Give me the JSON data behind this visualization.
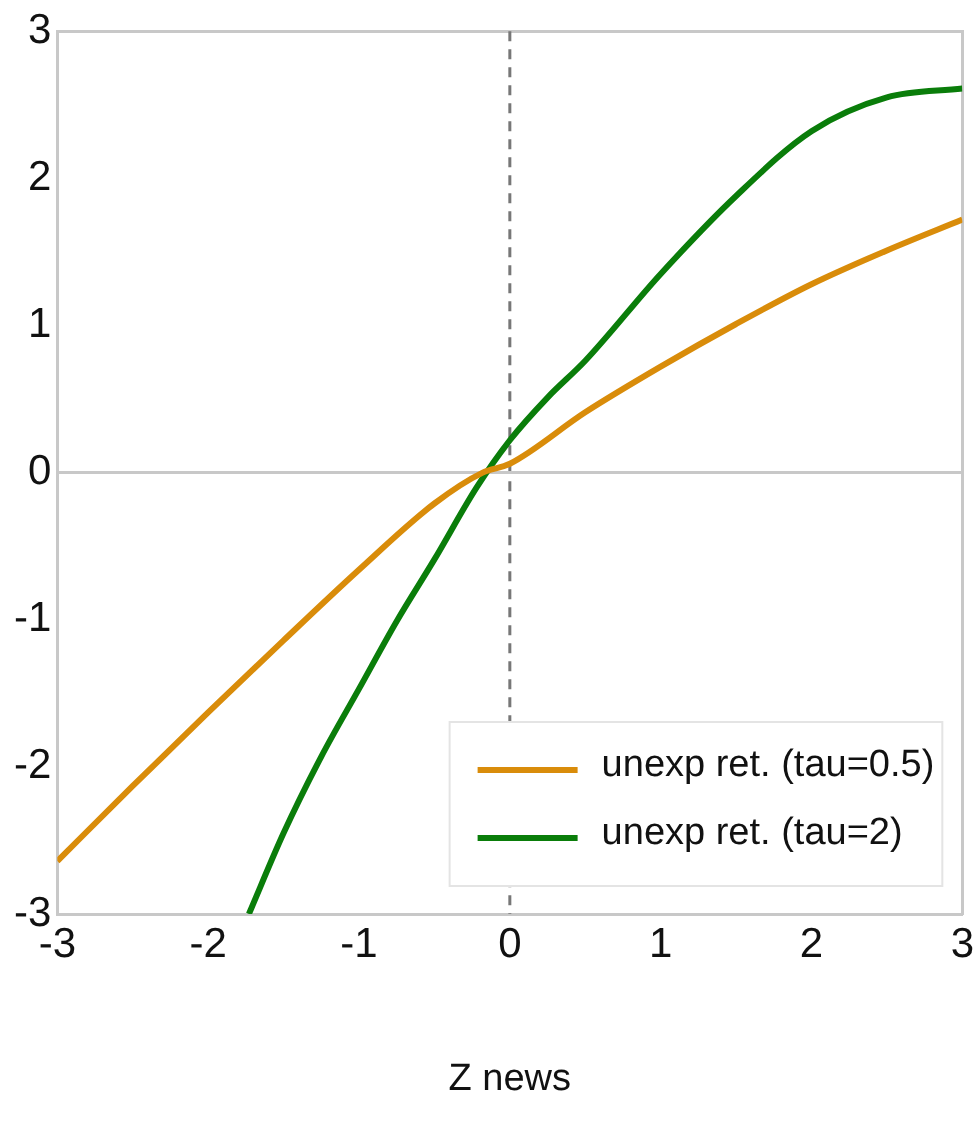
{
  "chart_data": {
    "type": "line",
    "xlabel": "Z news",
    "xlim": [
      -3,
      3
    ],
    "ylim": [
      -3,
      3
    ],
    "xticks": [
      -3,
      -2,
      -1,
      0,
      1,
      2,
      3
    ],
    "yticks": [
      -3,
      -2,
      -1,
      0,
      1,
      2,
      3
    ],
    "grid": false,
    "legend": "bottom right",
    "marker": "none",
    "line_style": "solid",
    "series": [
      {
        "name": "unexp ret. (tau=0.5)",
        "color": "#d98c0a",
        "x": [
          -3,
          -2.5,
          -2,
          -1.5,
          -1,
          -0.5,
          -0.18,
          0,
          0.5,
          1,
          1.5,
          2,
          2.5,
          3
        ],
        "values": [
          -2.64,
          -2.13,
          -1.63,
          -1.14,
          -0.66,
          -0.21,
          0,
          0.06,
          0.41,
          0.72,
          1.01,
          1.28,
          1.51,
          1.72
        ]
      },
      {
        "name": "unexp ret. (tau=2)",
        "color": "#0a7d0a",
        "x": [
          -1.73,
          -1.5,
          -1.25,
          -1,
          -0.75,
          -0.5,
          -0.22,
          0,
          0.25,
          0.5,
          1,
          1.5,
          2,
          2.5,
          3
        ],
        "values": [
          -3,
          -2.45,
          -1.93,
          -1.47,
          -1.01,
          -0.59,
          -0.1,
          0.22,
          0.51,
          0.76,
          1.35,
          1.88,
          2.32,
          2.55,
          2.61
        ]
      }
    ],
    "ref_lines": [
      {
        "axis": "x",
        "value": 0,
        "color": "#777777",
        "line_style": "dashed"
      },
      {
        "axis": "y",
        "value": 0,
        "color": "#c8c8c8",
        "line_style": "solid"
      }
    ]
  }
}
